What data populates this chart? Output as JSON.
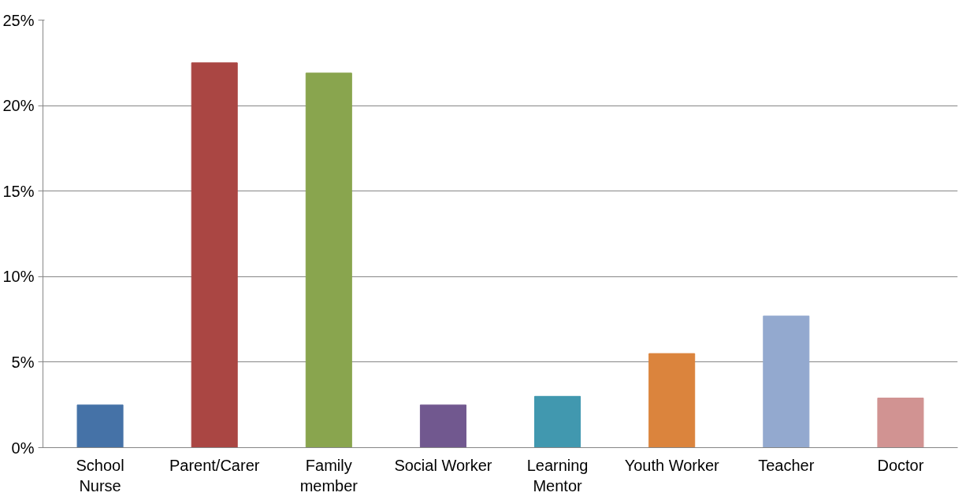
{
  "chart_data": {
    "type": "bar",
    "categories": [
      "School\nNurse",
      "Parent/Carer",
      "Family\nmember",
      "Social Worker",
      "Learning\nMentor",
      "Youth Worker",
      "Teacher",
      "Doctor"
    ],
    "values": [
      2.5,
      22.5,
      21.9,
      2.5,
      3.0,
      5.5,
      7.7,
      2.9
    ],
    "colors": [
      "#4572a7",
      "#aa4643",
      "#89a54e",
      "#71588f",
      "#4198af",
      "#db843d",
      "#93a9cf",
      "#d19392"
    ],
    "ylim": [
      0,
      25
    ],
    "yticks": [
      {
        "value": 0,
        "label": "0%"
      },
      {
        "value": 5,
        "label": "5%"
      },
      {
        "value": 10,
        "label": "10%"
      },
      {
        "value": 15,
        "label": "15%"
      },
      {
        "value": 20,
        "label": "20%"
      },
      {
        "value": 25,
        "label": "25%"
      }
    ],
    "grid": "y"
  }
}
